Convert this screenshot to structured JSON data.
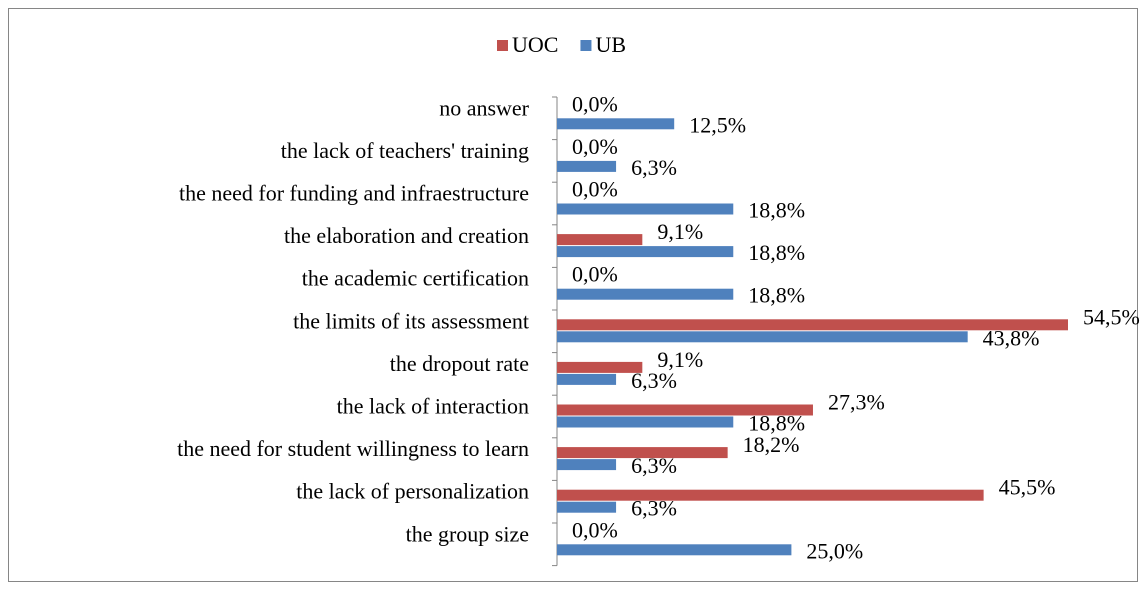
{
  "chart_data": {
    "type": "bar",
    "orientation": "horizontal",
    "categories": [
      "no answer",
      "the lack of teachers' training",
      "the need for funding and infraestructure",
      "the elaboration and creation",
      "the academic certification",
      "the limits of its assessment",
      "the dropout rate",
      "the lack of interaction",
      "the need for student willingness to learn",
      "the lack of personalization",
      "the group size"
    ],
    "series": [
      {
        "name": "UOC",
        "color": "#c0504d",
        "values": [
          0,
          0,
          0,
          9.1,
          0,
          54.5,
          9.1,
          27.3,
          18.2,
          45.5,
          0
        ],
        "value_labels": [
          "0,0%",
          "0,0%",
          "0,0%",
          "9,1%",
          "0,0%",
          "54,5%",
          "9,1%",
          "27,3%",
          "18,2%",
          "45,5%",
          "0,0%"
        ]
      },
      {
        "name": "UB",
        "color": "#4f81bd",
        "values": [
          12.5,
          6.3,
          18.8,
          18.8,
          18.8,
          43.8,
          6.3,
          18.8,
          6.3,
          6.3,
          25.0
        ],
        "value_labels": [
          "12,5%",
          "6,3%",
          "18,8%",
          "18,8%",
          "18,8%",
          "43,8%",
          "6,3%",
          "18,8%",
          "6,3%",
          "6,3%",
          "25,0%"
        ]
      }
    ],
    "legend": "top"
  }
}
